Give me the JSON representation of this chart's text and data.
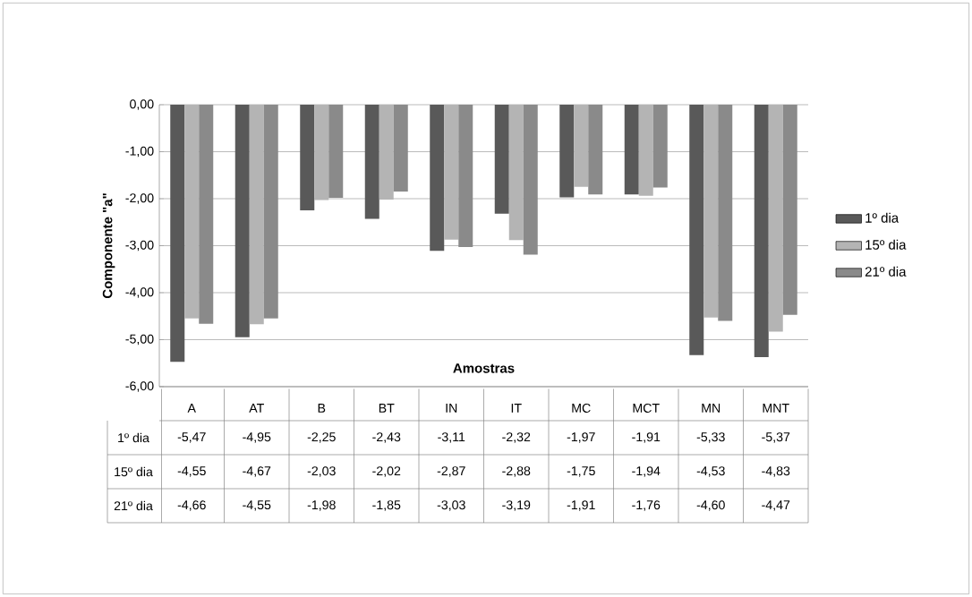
{
  "chart_data": {
    "type": "bar",
    "xlabel": "Amostras",
    "ylabel": "Componente \"a\"",
    "categories": [
      "A",
      "AT",
      "B",
      "BT",
      "IN",
      "IT",
      "MC",
      "MCT",
      "MN",
      "MNT"
    ],
    "series": [
      {
        "name": "1º dia",
        "color": "#595959",
        "values": [
          -5.47,
          -4.95,
          -2.25,
          -2.43,
          -3.11,
          -2.32,
          -1.97,
          -1.91,
          -5.33,
          -5.37
        ],
        "value_labels": [
          "-5,47",
          "-4,95",
          "-2,25",
          "-2,43",
          "-3,11",
          "-2,32",
          "-1,97",
          "-1,91",
          "-5,33",
          "-5,37"
        ]
      },
      {
        "name": "15º dia",
        "color": "#b4b4b4",
        "values": [
          -4.55,
          -4.67,
          -2.03,
          -2.02,
          -2.87,
          -2.88,
          -1.75,
          -1.94,
          -4.53,
          -4.83
        ],
        "value_labels": [
          "-4,55",
          "-4,67",
          "-2,03",
          "-2,02",
          "-2,87",
          "-2,88",
          "-1,75",
          "-1,94",
          "-4,53",
          "-4,83"
        ]
      },
      {
        "name": "21º dia",
        "color": "#8a8a8a",
        "values": [
          -4.66,
          -4.55,
          -1.98,
          -1.85,
          -3.03,
          -3.19,
          -1.91,
          -1.76,
          -4.6,
          -4.47
        ],
        "value_labels": [
          "-4,66",
          "-4,55",
          "-1,98",
          "-1,85",
          "-3,03",
          "-3,19",
          "-1,91",
          "-1,76",
          "-4,60",
          "-4,47"
        ]
      }
    ],
    "ylim": [
      -6,
      0
    ],
    "yticks": [
      {
        "value": -6,
        "label": "-6,00"
      },
      {
        "value": -5,
        "label": "-5,00"
      },
      {
        "value": -4,
        "label": "-4,00"
      },
      {
        "value": -3,
        "label": "-3,00"
      },
      {
        "value": -2,
        "label": "-2,00"
      },
      {
        "value": -1,
        "label": "-1,00"
      },
      {
        "value": 0,
        "label": "0,00"
      }
    ],
    "grid": "y",
    "legend": "right"
  }
}
